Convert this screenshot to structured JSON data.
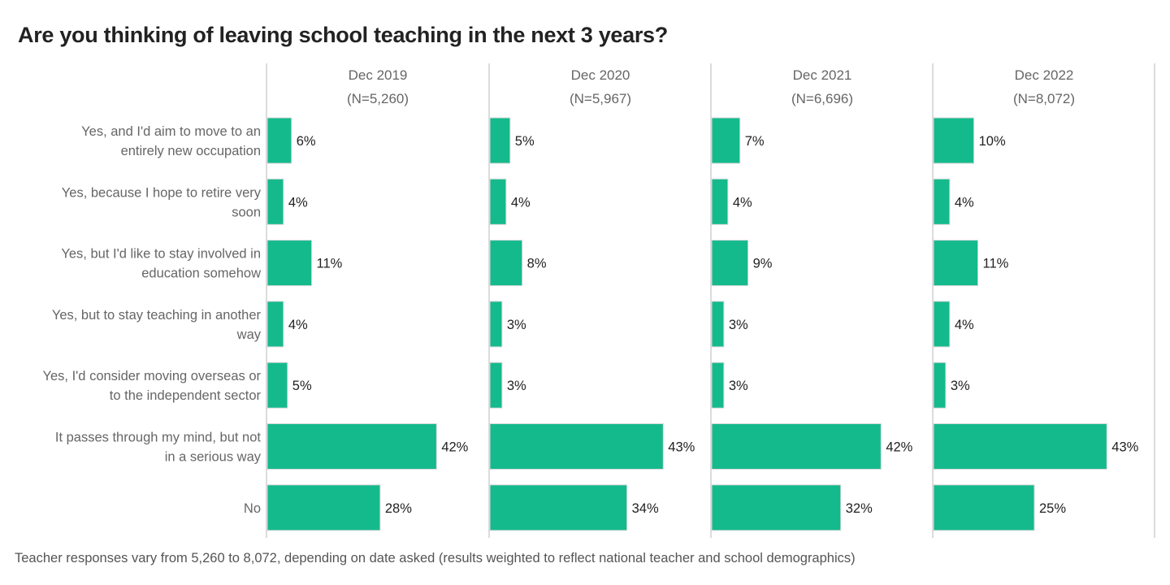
{
  "chart_data": {
    "type": "bar",
    "orientation": "horizontal",
    "title": "Are you thinking of leaving school teaching in the next 3 years?",
    "footnote": "Teacher responses vary from 5,260 to 8,072, depending on date asked (results weighted to reflect national teacher and school demographics)",
    "categories": [
      [
        "Yes, and I'd aim to move to an",
        "entirely new occupation"
      ],
      [
        "Yes, because I hope to retire very",
        "soon"
      ],
      [
        "Yes, but I'd like to stay involved in",
        "education somehow"
      ],
      [
        "Yes, but to stay teaching in another",
        "way"
      ],
      [
        "Yes, I'd consider moving overseas or",
        "to the independent sector"
      ],
      [
        "It passes through my mind, but not",
        "in a serious way"
      ],
      [
        "No"
      ]
    ],
    "series": [
      {
        "name": "Dec 2019",
        "n": "(N=5,260)",
        "values": [
          6,
          4,
          11,
          4,
          5,
          42,
          28
        ]
      },
      {
        "name": "Dec 2020",
        "n": "(N=5,967)",
        "values": [
          5,
          4,
          8,
          3,
          3,
          43,
          34
        ]
      },
      {
        "name": "Dec 2021",
        "n": "(N=6,696)",
        "values": [
          7,
          4,
          9,
          3,
          3,
          42,
          32
        ]
      },
      {
        "name": "Dec 2022",
        "n": "(N=8,072)",
        "values": [
          10,
          4,
          11,
          4,
          3,
          43,
          25
        ]
      }
    ],
    "value_suffix": "%",
    "xlim": [
      0,
      55
    ],
    "bar_color": "#14BA8C",
    "grid": false
  }
}
